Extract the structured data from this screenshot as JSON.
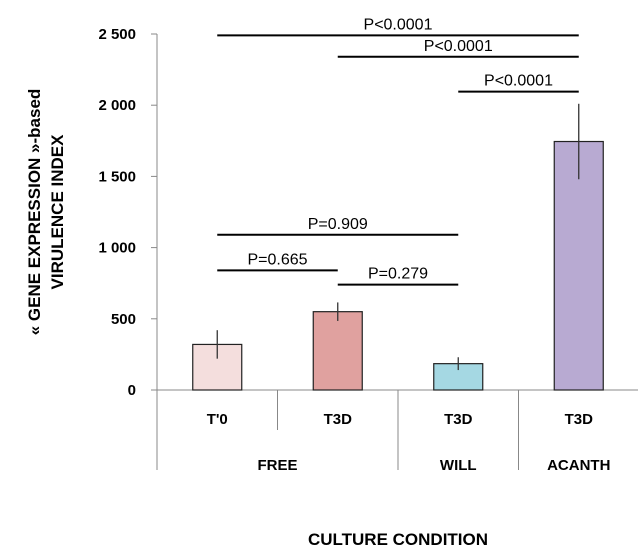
{
  "chart_data": {
    "type": "bar",
    "categories": [
      "T'0",
      "T3D",
      "T3D",
      "T3D"
    ],
    "groups": [
      {
        "label": "FREE",
        "start": 0,
        "end": 1
      },
      {
        "label": "WILL",
        "start": 2,
        "end": 2
      },
      {
        "label": "ACANTH",
        "start": 3,
        "end": 3
      }
    ],
    "values": [
      320,
      550,
      185,
      1745
    ],
    "errors": [
      100,
      65,
      45,
      265
    ],
    "colors": [
      "#f4dedd",
      "#e0a19f",
      "#a5d8e3",
      "#b8aad2"
    ],
    "ylim": [
      0,
      2500
    ],
    "yticks": [
      0,
      500,
      1000,
      1500,
      2000,
      2500
    ],
    "ytick_labels": [
      "0",
      "500",
      "1 000",
      "1 500",
      "2 000",
      "2 500"
    ],
    "ylabel_line1": "« GENE EXPRESSION »-based",
    "ylabel_line2": "VIRULENCE INDEX",
    "xlabel": "CULTURE CONDITION",
    "comparisons": [
      {
        "from": 0,
        "to": 3,
        "level": 2490,
        "label": "P<0.0001"
      },
      {
        "from": 1,
        "to": 3,
        "level": 2340,
        "label": "P<0.0001"
      },
      {
        "from": 2,
        "to": 3,
        "level": 2095,
        "label": "P<0.0001"
      },
      {
        "from": 0,
        "to": 2,
        "level": 1090,
        "label": "P=0.909"
      },
      {
        "from": 0,
        "to": 1,
        "level": 840,
        "label": "P=0.665"
      },
      {
        "from": 1,
        "to": 2,
        "level": 740,
        "label": "P=0.279"
      }
    ]
  }
}
